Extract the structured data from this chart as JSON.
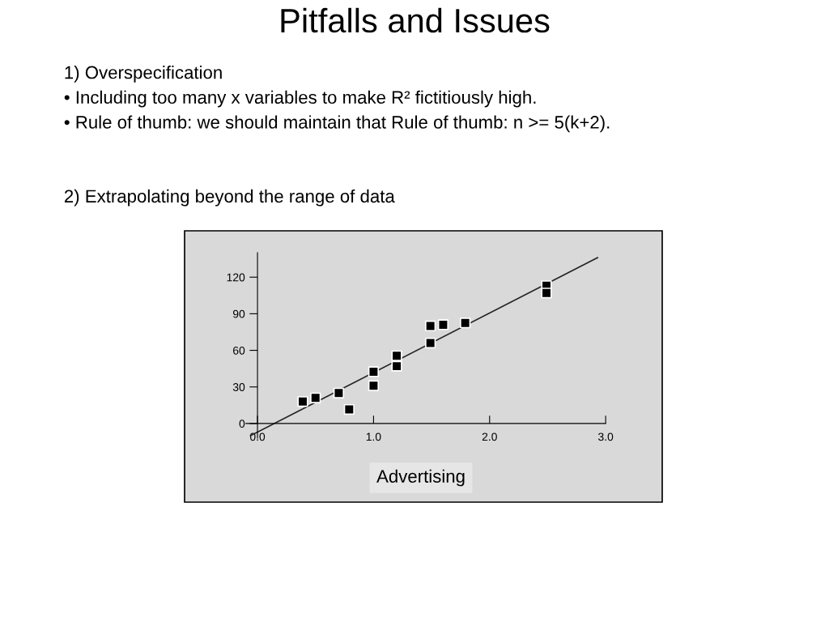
{
  "chart_data": {
    "type": "scatter",
    "title": "Pitfalls and Issues",
    "annotations": [
      "1) Overspecification",
      "• Including too many x variables to make R² fictitiously high.",
      "• Rule of thumb: we should maintain that Rule of thumb: n >= 5(k+2).",
      "2) Extrapolating beyond the range of data"
    ],
    "xlabel": "Advertising",
    "xlim": [
      -0.1,
      3.0
    ],
    "ylim": [
      -12,
      140
    ],
    "xticks": [
      {
        "value": 0,
        "label": "0.0"
      },
      {
        "value": 1,
        "label": "1.0"
      },
      {
        "value": 2,
        "label": "2.0"
      },
      {
        "value": 3,
        "label": "3.0"
      }
    ],
    "yticks": [
      0,
      30,
      60,
      90,
      120
    ],
    "grid": false,
    "legend": false,
    "series": [
      {
        "marker": "square",
        "color": "#000000",
        "x": [
          0.39,
          0.5,
          0.7,
          0.79,
          1.0,
          1.0,
          1.2,
          1.2,
          1.49,
          1.49,
          1.6,
          1.79,
          2.49,
          2.49
        ],
        "values": [
          18,
          21,
          25,
          11.5,
          42.5,
          31,
          55.5,
          47,
          66,
          80,
          81,
          82.5,
          113,
          107
        ]
      },
      {
        "type": "line",
        "color": "#222222",
        "x": [
          -0.06,
          2.93
        ],
        "values": [
          -10,
          136
        ]
      }
    ]
  }
}
